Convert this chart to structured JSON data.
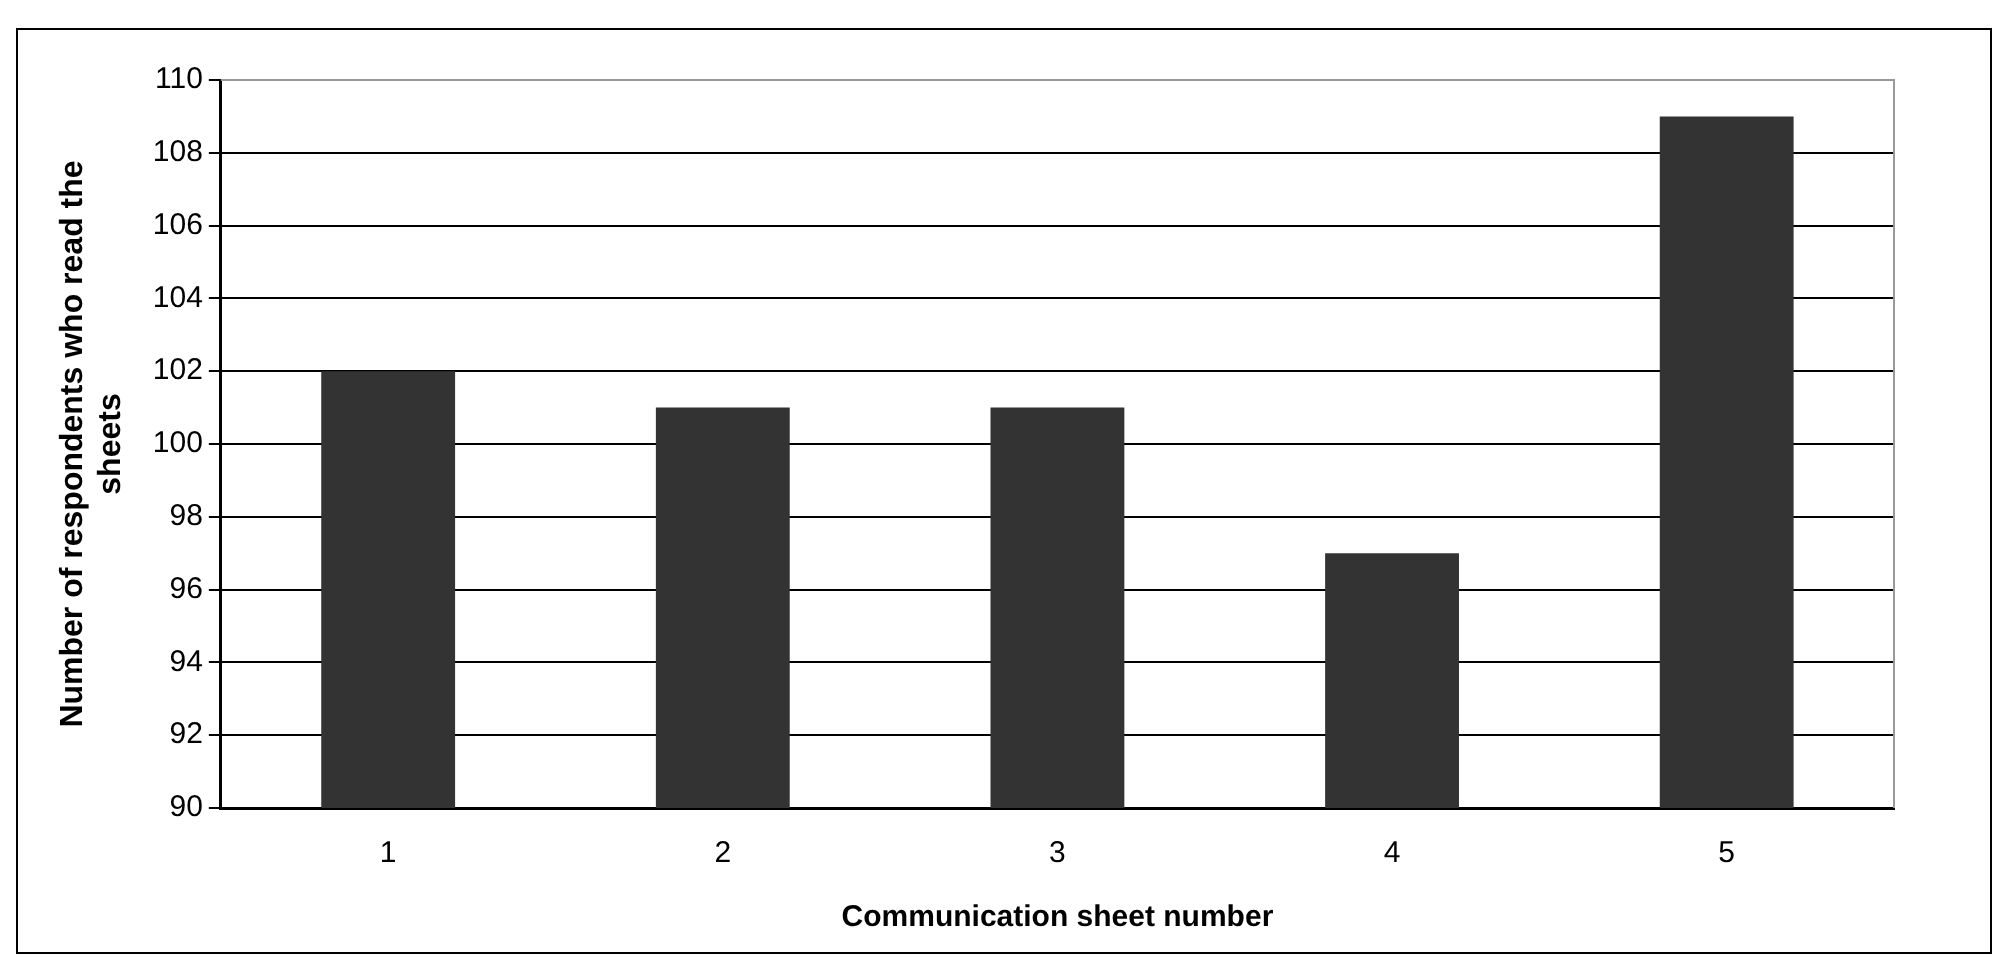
{
  "chart_data": {
    "type": "bar",
    "xlabel": "Communication sheet number",
    "ylabel": "Number of respondents who read the sheets",
    "categories": [
      "1",
      "2",
      "3",
      "4",
      "5"
    ],
    "values": [
      102,
      101,
      101,
      97,
      109
    ],
    "color": "#333333",
    "ylim": [
      90,
      110
    ],
    "yticks": [
      90,
      92,
      94,
      96,
      98,
      100,
      102,
      104,
      106,
      108,
      110
    ],
    "grid": "y",
    "legend": false
  }
}
